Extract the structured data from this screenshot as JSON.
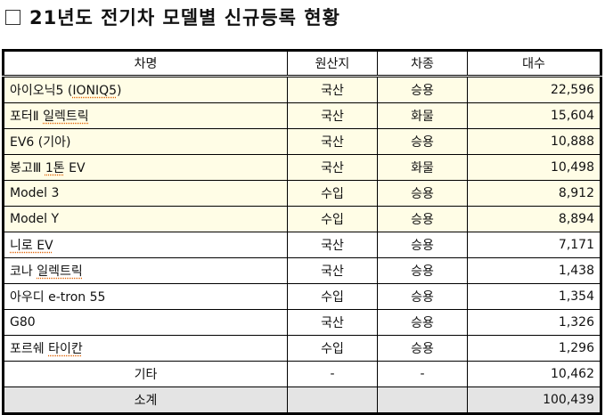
{
  "title": "21년도 전기차 모델별 신규등록 현황",
  "headers": [
    "차명",
    "원산지",
    "차종",
    "대수"
  ],
  "rows": [
    {
      "pre": "아이오닉5 (",
      "ul": "IONIQ5",
      "post": ")",
      "origin": "국산",
      "type": "승용",
      "count": "22,596",
      "highlight": true
    },
    {
      "pre": "포터Ⅱ ",
      "ul": "일렉트릭",
      "post": "",
      "origin": "국산",
      "type": "화물",
      "count": "15,604",
      "highlight": true
    },
    {
      "pre": "EV6 (기아)",
      "ul": "",
      "post": "",
      "origin": "국산",
      "type": "승용",
      "count": "10,888",
      "highlight": true
    },
    {
      "pre": "봉고Ⅲ ",
      "ul": "1톤",
      "post": " EV",
      "origin": "국산",
      "type": "화물",
      "count": "10,498",
      "highlight": true
    },
    {
      "pre": "Model 3",
      "ul": "",
      "post": "",
      "origin": "수입",
      "type": "승용",
      "count": "8,912",
      "highlight": true
    },
    {
      "pre": "Model Y",
      "ul": "",
      "post": "",
      "origin": "수입",
      "type": "승용",
      "count": "8,894",
      "highlight": true
    },
    {
      "pre": "",
      "ul": "니로 EV",
      "post": "",
      "origin": "국산",
      "type": "승용",
      "count": "7,171",
      "highlight": false
    },
    {
      "pre": "코나 ",
      "ul": "일렉트릭",
      "post": "",
      "origin": "국산",
      "type": "승용",
      "count": "1,438",
      "highlight": false
    },
    {
      "pre": "아우디 e-tron 55",
      "ul": "",
      "post": "",
      "origin": "수입",
      "type": "승용",
      "count": "1,354",
      "highlight": false
    },
    {
      "pre": "G80",
      "ul": "",
      "post": "",
      "origin": "국산",
      "type": "승용",
      "count": "1,326",
      "highlight": false
    },
    {
      "pre": "포르쉐 ",
      "ul": "타이칸",
      "post": "",
      "origin": "수입",
      "type": "승용",
      "count": "1,296",
      "highlight": false
    }
  ],
  "other": {
    "label": "기타",
    "origin": "-",
    "type": "-",
    "count": "10,462"
  },
  "total": {
    "label": "소계",
    "count": "100,439"
  },
  "colors": {
    "highlight": "#fffde6",
    "total": "#e4e4e4",
    "spellcheck": "#e06000"
  }
}
